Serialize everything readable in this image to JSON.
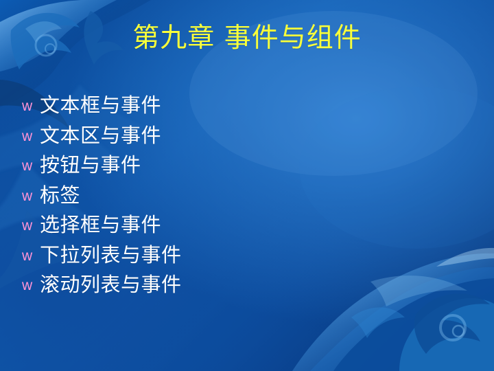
{
  "slide": {
    "title": "第九章 事件与组件",
    "bullet_marker": "w",
    "bullets": [
      "文本框与事件",
      "文本区与事件",
      "按钮与事件",
      "标签",
      "选择框与事件",
      "下拉列表与事件",
      "滚动列表与事件"
    ]
  },
  "theme": {
    "title_color": "#f8ff3b",
    "text_color": "#ffffff",
    "bullet_color": "#ff93d6",
    "background_color": "#0b4796"
  }
}
